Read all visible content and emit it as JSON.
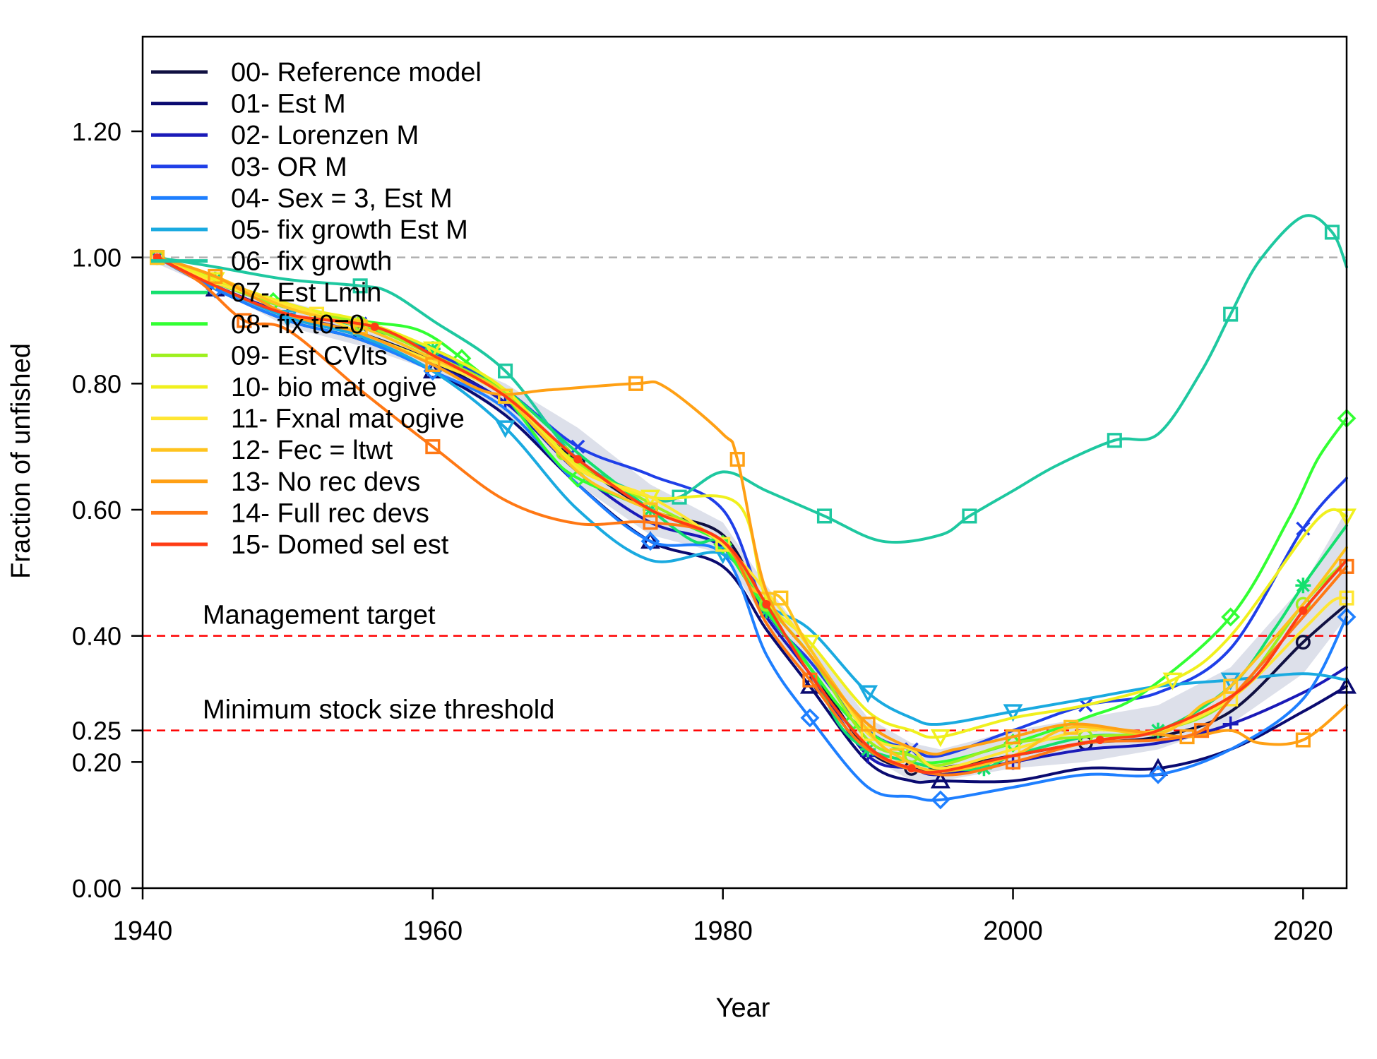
{
  "chart_data": {
    "type": "line",
    "title": "",
    "xlabel": "Year",
    "ylabel": "Fraction of unfished",
    "xlim": [
      1940,
      2023
    ],
    "ylim": [
      0,
      1.35
    ],
    "x_ticks": [
      "1940",
      "1960",
      "1980",
      "2000",
      "2020"
    ],
    "y_ticks": [
      "0.00",
      "0.20",
      "0.25",
      "0.40",
      "0.60",
      "0.80",
      "1.00",
      "1.20"
    ],
    "legend_position": "top-left",
    "grid": false,
    "uncertainty_band": {
      "color": "#dde0ea",
      "x": [
        1941,
        1945,
        1950,
        1955,
        1960,
        1965,
        1970,
        1975,
        1980,
        1983,
        1986,
        1990,
        1993,
        1995,
        2000,
        2005,
        2010,
        2015,
        2020,
        2023
      ],
      "lower": [
        0.99,
        0.95,
        0.89,
        0.86,
        0.82,
        0.75,
        0.64,
        0.56,
        0.53,
        0.42,
        0.33,
        0.21,
        0.17,
        0.17,
        0.19,
        0.2,
        0.22,
        0.26,
        0.34,
        0.43
      ],
      "upper": [
        1.0,
        0.96,
        0.93,
        0.9,
        0.85,
        0.8,
        0.73,
        0.64,
        0.58,
        0.48,
        0.39,
        0.27,
        0.23,
        0.22,
        0.25,
        0.27,
        0.29,
        0.35,
        0.48,
        0.6
      ]
    },
    "reference_lines": [
      {
        "y": 1.0,
        "style": "gray-dashed",
        "color": "#b0b0b0",
        "label": ""
      },
      {
        "y": 0.4,
        "style": "red-dashed",
        "color": "#ff0000",
        "label": "Management target"
      },
      {
        "y": 0.25,
        "style": "red-dashed",
        "color": "#ff0000",
        "label": "Minimum stock size threshold"
      }
    ],
    "series": [
      {
        "name": "00- Reference model",
        "color": "#101041",
        "marker": "circle",
        "x": [
          1941,
          1945,
          1950,
          1955,
          1960,
          1965,
          1970,
          1975,
          1980,
          1983,
          1986,
          1990,
          1993,
          1995,
          2000,
          2005,
          2010,
          2015,
          2020,
          2023
        ],
        "y": [
          1.0,
          0.955,
          0.91,
          0.88,
          0.835,
          0.77,
          0.675,
          0.6,
          0.56,
          0.44,
          0.35,
          0.22,
          0.19,
          0.19,
          0.21,
          0.23,
          0.24,
          0.28,
          0.39,
          0.45
        ]
      },
      {
        "name": "01- Est M",
        "color": "#0a0a70",
        "marker": "triangle",
        "x": [
          1941,
          1945,
          1950,
          1955,
          1960,
          1965,
          1970,
          1975,
          1980,
          1983,
          1986,
          1990,
          1993,
          1995,
          2000,
          2005,
          2010,
          2015,
          2020,
          2023
        ],
        "y": [
          1.0,
          0.95,
          0.9,
          0.87,
          0.82,
          0.75,
          0.64,
          0.55,
          0.51,
          0.41,
          0.32,
          0.2,
          0.17,
          0.17,
          0.17,
          0.19,
          0.19,
          0.22,
          0.28,
          0.32
        ]
      },
      {
        "name": "02- Lorenzen M",
        "color": "#1a1ab8",
        "marker": "plus",
        "x": [
          1941,
          1945,
          1950,
          1955,
          1960,
          1965,
          1970,
          1975,
          1980,
          1983,
          1986,
          1990,
          1993,
          1995,
          2000,
          2005,
          2010,
          2015,
          2020,
          2023
        ],
        "y": [
          1.0,
          0.955,
          0.91,
          0.88,
          0.83,
          0.77,
          0.66,
          0.58,
          0.54,
          0.43,
          0.34,
          0.21,
          0.19,
          0.18,
          0.2,
          0.22,
          0.23,
          0.26,
          0.31,
          0.35
        ]
      },
      {
        "name": "03- OR M",
        "color": "#1f3fe8",
        "marker": "x",
        "x": [
          1941,
          1945,
          1950,
          1955,
          1960,
          1965,
          1970,
          1975,
          1980,
          1983,
          1986,
          1990,
          1993,
          1995,
          2000,
          2005,
          2010,
          2015,
          2020,
          2023
        ],
        "y": [
          1.0,
          0.96,
          0.92,
          0.895,
          0.85,
          0.79,
          0.7,
          0.655,
          0.6,
          0.44,
          0.36,
          0.25,
          0.22,
          0.21,
          0.25,
          0.29,
          0.31,
          0.38,
          0.57,
          0.65
        ]
      },
      {
        "name": "04- Sex = 3, Est M",
        "color": "#1e7fff",
        "marker": "diamond",
        "x": [
          1941,
          1945,
          1950,
          1955,
          1960,
          1965,
          1970,
          1975,
          1980,
          1983,
          1986,
          1990,
          1993,
          1995,
          2000,
          2005,
          2010,
          2015,
          2020,
          2023
        ],
        "y": [
          1.0,
          0.95,
          0.9,
          0.87,
          0.82,
          0.76,
          0.64,
          0.55,
          0.53,
          0.37,
          0.27,
          0.16,
          0.145,
          0.14,
          0.16,
          0.18,
          0.18,
          0.22,
          0.3,
          0.43
        ]
      },
      {
        "name": "05- fix growth Est M",
        "color": "#1aaae0",
        "marker": "triangle-down",
        "x": [
          1941,
          1945,
          1950,
          1955,
          1960,
          1965,
          1970,
          1975,
          1980,
          1983,
          1986,
          1990,
          1993,
          1995,
          2000,
          2005,
          2010,
          2015,
          2020,
          2023
        ],
        "y": [
          1.0,
          0.955,
          0.905,
          0.875,
          0.82,
          0.73,
          0.6,
          0.52,
          0.53,
          0.45,
          0.41,
          0.31,
          0.27,
          0.26,
          0.28,
          0.3,
          0.32,
          0.33,
          0.34,
          0.33
        ]
      },
      {
        "name": "06- fix growth",
        "color": "#1ec8a0",
        "marker": "square",
        "x": [
          1941,
          1945,
          1950,
          1955,
          1957,
          1960,
          1965,
          1970,
          1975,
          1977,
          1980,
          1983,
          1987,
          1991,
          1995,
          1997,
          2000,
          2003,
          2007,
          2010,
          2013,
          2015,
          2017,
          2020,
          2022,
          2023
        ],
        "y": [
          1.0,
          0.985,
          0.965,
          0.955,
          0.945,
          0.9,
          0.82,
          0.68,
          0.62,
          0.62,
          0.66,
          0.63,
          0.59,
          0.55,
          0.56,
          0.59,
          0.63,
          0.67,
          0.71,
          0.72,
          0.82,
          0.91,
          0.995,
          1.065,
          1.04,
          0.985
        ]
      },
      {
        "name": "07- Est Lmin",
        "color": "#14e06e",
        "marker": "asterisk",
        "x": [
          1941,
          1945,
          1950,
          1955,
          1960,
          1965,
          1970,
          1975,
          1978,
          1980,
          1983,
          1986,
          1988,
          1990,
          1993,
          1995,
          1998,
          2000,
          2005,
          2010,
          2015,
          2018,
          2020,
          2023
        ],
        "y": [
          1.0,
          0.965,
          0.92,
          0.89,
          0.855,
          0.79,
          0.69,
          0.6,
          0.55,
          0.545,
          0.44,
          0.35,
          0.26,
          0.22,
          0.2,
          0.19,
          0.19,
          0.21,
          0.24,
          0.25,
          0.32,
          0.41,
          0.48,
          0.575
        ]
      },
      {
        "name": "08- fix t0=0",
        "color": "#32ff32",
        "marker": "diamond",
        "x": [
          1941,
          1945,
          1949,
          1955,
          1959,
          1962,
          1965,
          1968,
          1970,
          1975,
          1979,
          1980,
          1983,
          1986,
          1989,
          1993,
          1995,
          2000,
          2005,
          2009,
          2015,
          2019,
          2021,
          2023
        ],
        "y": [
          1.0,
          0.965,
          0.93,
          0.9,
          0.885,
          0.84,
          0.78,
          0.69,
          0.65,
          0.6,
          0.56,
          0.545,
          0.44,
          0.35,
          0.265,
          0.21,
          0.2,
          0.23,
          0.27,
          0.31,
          0.43,
          0.585,
          0.68,
          0.745
        ]
      },
      {
        "name": "09- Est CVlts",
        "color": "#9ef01e",
        "marker": "circle",
        "x": [
          1941,
          1945,
          1950,
          1955,
          1960,
          1965,
          1969,
          1975,
          1980,
          1983,
          1986,
          1990,
          1993,
          1995,
          2000,
          2005,
          2010,
          2015,
          2020,
          2023
        ],
        "y": [
          1.0,
          0.96,
          0.92,
          0.895,
          0.845,
          0.785,
          0.69,
          0.61,
          0.545,
          0.45,
          0.37,
          0.235,
          0.21,
          0.195,
          0.23,
          0.24,
          0.25,
          0.3,
          0.45,
          0.52
        ]
      },
      {
        "name": "10- bio mat ogive",
        "color": "#f0f01e",
        "marker": "triangle-down",
        "x": [
          1941,
          1945,
          1951,
          1955,
          1960,
          1965,
          1970,
          1975,
          1981,
          1983,
          1986,
          1990,
          1993,
          1995,
          2000,
          2005,
          2011,
          2015,
          2021,
          2023
        ],
        "y": [
          1.0,
          0.965,
          0.92,
          0.9,
          0.855,
          0.79,
          0.67,
          0.62,
          0.61,
          0.46,
          0.39,
          0.28,
          0.25,
          0.24,
          0.27,
          0.29,
          0.33,
          0.4,
          0.585,
          0.59
        ]
      },
      {
        "name": "11- Fxnal mat ogive",
        "color": "#ffe632",
        "marker": "square",
        "x": [
          1941,
          1945,
          1952,
          1955,
          1960,
          1965,
          1970,
          1975,
          1980,
          1983,
          1986,
          1990,
          1993,
          1995,
          2000,
          2005,
          2010,
          2015,
          2020,
          2022,
          2023
        ],
        "y": [
          1.0,
          0.96,
          0.91,
          0.88,
          0.835,
          0.78,
          0.665,
          0.62,
          0.545,
          0.47,
          0.38,
          0.245,
          0.22,
          0.19,
          0.22,
          0.25,
          0.25,
          0.3,
          0.41,
          0.455,
          0.46
        ]
      },
      {
        "name": "12- Fec = ltwt",
        "color": "#ffc31e",
        "marker": "square",
        "x": [
          1941,
          1945,
          1950,
          1955,
          1960,
          1963,
          1965,
          1970,
          1973,
          1975,
          1980,
          1982,
          1984,
          1986,
          1990,
          1992,
          1995,
          2000,
          2004,
          2010,
          2013,
          2015,
          2020,
          2023
        ],
        "y": [
          1.0,
          0.97,
          0.92,
          0.89,
          0.84,
          0.81,
          0.78,
          0.66,
          0.62,
          0.6,
          0.55,
          0.475,
          0.46,
          0.38,
          0.25,
          0.21,
          0.185,
          0.21,
          0.255,
          0.245,
          0.29,
          0.32,
          0.45,
          0.54
        ]
      },
      {
        "name": "13- No rec devs",
        "color": "#ffa014",
        "marker": "square",
        "x": [
          1941,
          1945,
          1950,
          1955,
          1960,
          1964,
          1968,
          1974,
          1976,
          1980,
          1981,
          1983,
          1986,
          1990,
          1994,
          1996,
          2000,
          2004,
          2008,
          2012,
          2015,
          2017,
          2020,
          2023
        ],
        "y": [
          1.0,
          0.97,
          0.91,
          0.88,
          0.83,
          0.785,
          0.79,
          0.8,
          0.795,
          0.72,
          0.68,
          0.47,
          0.37,
          0.26,
          0.215,
          0.22,
          0.24,
          0.26,
          0.25,
          0.24,
          0.25,
          0.23,
          0.235,
          0.29
        ]
      },
      {
        "name": "14- Full rec devs",
        "color": "#ff7814",
        "marker": "square",
        "x": [
          1941,
          1944,
          1947,
          1950,
          1955,
          1960,
          1965,
          1970,
          1975,
          1980,
          1983,
          1986,
          1990,
          1995,
          2000,
          2005,
          2010,
          2013,
          2015,
          2020,
          2023
        ],
        "y": [
          1.0,
          0.96,
          0.9,
          0.885,
          0.79,
          0.7,
          0.615,
          0.578,
          0.58,
          0.55,
          0.42,
          0.33,
          0.22,
          0.18,
          0.2,
          0.23,
          0.235,
          0.25,
          0.3,
          0.43,
          0.51
        ]
      },
      {
        "name": "15- Domed sel est",
        "color": "#ff3c14",
        "marker": "dot",
        "x": [
          1941,
          1945,
          1950,
          1956,
          1960,
          1965,
          1970,
          1975,
          1980,
          1983,
          1986,
          1990,
          1993,
          1995,
          2000,
          2006,
          2010,
          2016,
          2020,
          2023
        ],
        "y": [
          1.0,
          0.955,
          0.91,
          0.89,
          0.845,
          0.78,
          0.68,
          0.6,
          0.55,
          0.45,
          0.34,
          0.225,
          0.19,
          0.185,
          0.21,
          0.235,
          0.25,
          0.32,
          0.44,
          0.52
        ]
      }
    ]
  }
}
